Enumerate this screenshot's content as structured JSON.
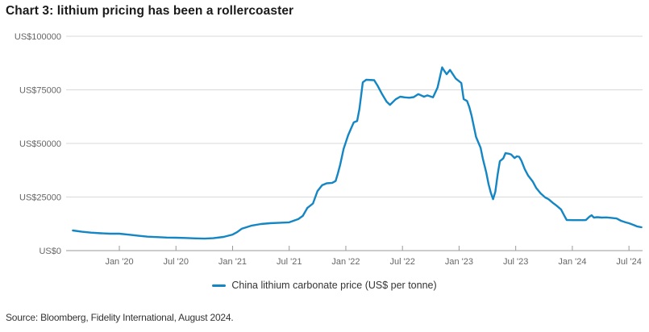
{
  "page": {
    "source": "Source: Bloomberg, Fidelity International, August 2024."
  },
  "colors": {
    "line": "#1486c4",
    "grid": "#d9d9d9",
    "axis": "#999999",
    "tick_label": "#666666",
    "title": "#1a1a1a",
    "text": "#333333"
  },
  "chart_data": {
    "type": "line",
    "title": "Chart 3: lithium pricing has been a rollercoaster",
    "x_unit": "decimal year",
    "xlim": [
      2019.53,
      2024.62
    ],
    "ylim": [
      0,
      100000
    ],
    "grid": "horizontal",
    "legend_position": "bottom-center",
    "y_ticks": [
      {
        "v": 100000,
        "label": "US$100000"
      },
      {
        "v": 75000,
        "label": "US$75000"
      },
      {
        "v": 50000,
        "label": "US$50000"
      },
      {
        "v": 25000,
        "label": "US$25000"
      },
      {
        "v": 0,
        "label": "US$0"
      }
    ],
    "x_ticks": [
      {
        "v": 2020.0,
        "label": "Jan '20"
      },
      {
        "v": 2020.5,
        "label": "Jul '20"
      },
      {
        "v": 2021.0,
        "label": "Jan '21"
      },
      {
        "v": 2021.5,
        "label": "Jul '21"
      },
      {
        "v": 2022.0,
        "label": "Jan '22"
      },
      {
        "v": 2022.5,
        "label": "Jul '22"
      },
      {
        "v": 2023.0,
        "label": "Jan '23"
      },
      {
        "v": 2023.5,
        "label": "Jul '23"
      },
      {
        "v": 2024.0,
        "label": "Jan '24"
      },
      {
        "v": 2024.5,
        "label": "Jul '24"
      }
    ],
    "series": [
      {
        "name": "China lithium carbonate price (US$ per tonne)",
        "color": "#1486c4",
        "points": [
          [
            2019.59,
            9400
          ],
          [
            2019.67,
            8800
          ],
          [
            2019.75,
            8400
          ],
          [
            2019.84,
            8100
          ],
          [
            2019.92,
            7900
          ],
          [
            2020.0,
            7900
          ],
          [
            2020.09,
            7400
          ],
          [
            2020.17,
            6900
          ],
          [
            2020.25,
            6500
          ],
          [
            2020.33,
            6300
          ],
          [
            2020.42,
            6100
          ],
          [
            2020.5,
            6000
          ],
          [
            2020.58,
            5900
          ],
          [
            2020.67,
            5700
          ],
          [
            2020.75,
            5600
          ],
          [
            2020.83,
            5800
          ],
          [
            2020.92,
            6400
          ],
          [
            2021.0,
            7500
          ],
          [
            2021.04,
            8600
          ],
          [
            2021.08,
            10200
          ],
          [
            2021.17,
            11700
          ],
          [
            2021.25,
            12400
          ],
          [
            2021.33,
            12800
          ],
          [
            2021.42,
            13000
          ],
          [
            2021.5,
            13200
          ],
          [
            2021.58,
            14700
          ],
          [
            2021.62,
            16200
          ],
          [
            2021.66,
            19900
          ],
          [
            2021.71,
            22000
          ],
          [
            2021.75,
            27800
          ],
          [
            2021.79,
            30500
          ],
          [
            2021.83,
            31400
          ],
          [
            2021.88,
            31600
          ],
          [
            2021.91,
            32500
          ],
          [
            2021.93,
            36000
          ],
          [
            2021.95,
            40000
          ],
          [
            2021.98,
            47500
          ],
          [
            2022.02,
            53800
          ],
          [
            2022.05,
            57500
          ],
          [
            2022.07,
            59800
          ],
          [
            2022.1,
            60500
          ],
          [
            2022.12,
            66000
          ],
          [
            2022.15,
            78500
          ],
          [
            2022.18,
            79700
          ],
          [
            2022.25,
            79500
          ],
          [
            2022.28,
            77000
          ],
          [
            2022.32,
            73000
          ],
          [
            2022.36,
            69500
          ],
          [
            2022.39,
            68000
          ],
          [
            2022.44,
            70600
          ],
          [
            2022.48,
            71800
          ],
          [
            2022.52,
            71500
          ],
          [
            2022.56,
            71300
          ],
          [
            2022.6,
            71600
          ],
          [
            2022.64,
            73000
          ],
          [
            2022.69,
            71800
          ],
          [
            2022.72,
            72400
          ],
          [
            2022.77,
            71500
          ],
          [
            2022.81,
            76000
          ],
          [
            2022.85,
            85500
          ],
          [
            2022.87,
            83800
          ],
          [
            2022.89,
            82300
          ],
          [
            2022.92,
            84300
          ],
          [
            2022.97,
            80300
          ],
          [
            2023.02,
            78200
          ],
          [
            2023.04,
            70700
          ],
          [
            2023.07,
            69800
          ],
          [
            2023.09,
            67000
          ],
          [
            2023.11,
            63000
          ],
          [
            2023.13,
            58000
          ],
          [
            2023.15,
            53000
          ],
          [
            2023.19,
            48000
          ],
          [
            2023.21,
            42900
          ],
          [
            2023.24,
            36500
          ],
          [
            2023.26,
            31000
          ],
          [
            2023.28,
            27000
          ],
          [
            2023.3,
            24000
          ],
          [
            2023.32,
            27500
          ],
          [
            2023.34,
            35300
          ],
          [
            2023.36,
            41700
          ],
          [
            2023.39,
            43000
          ],
          [
            2023.41,
            45500
          ],
          [
            2023.44,
            45200
          ],
          [
            2023.46,
            44800
          ],
          [
            2023.49,
            43200
          ],
          [
            2023.51,
            44000
          ],
          [
            2023.53,
            43800
          ],
          [
            2023.55,
            42000
          ],
          [
            2023.58,
            38000
          ],
          [
            2023.61,
            35000
          ],
          [
            2023.65,
            32300
          ],
          [
            2023.68,
            29300
          ],
          [
            2023.72,
            26700
          ],
          [
            2023.76,
            24800
          ],
          [
            2023.79,
            24000
          ],
          [
            2023.83,
            22200
          ],
          [
            2023.86,
            21000
          ],
          [
            2023.9,
            19200
          ],
          [
            2023.93,
            16200
          ],
          [
            2023.95,
            14300
          ],
          [
            2024.01,
            14200
          ],
          [
            2024.1,
            14200
          ],
          [
            2024.12,
            14300
          ],
          [
            2024.15,
            15800
          ],
          [
            2024.17,
            16500
          ],
          [
            2024.19,
            15400
          ],
          [
            2024.22,
            15600
          ],
          [
            2024.26,
            15400
          ],
          [
            2024.3,
            15500
          ],
          [
            2024.34,
            15300
          ],
          [
            2024.39,
            15000
          ],
          [
            2024.43,
            13900
          ],
          [
            2024.47,
            13200
          ],
          [
            2024.5,
            12800
          ],
          [
            2024.54,
            12000
          ],
          [
            2024.57,
            11300
          ],
          [
            2024.61,
            10900
          ]
        ]
      }
    ]
  }
}
